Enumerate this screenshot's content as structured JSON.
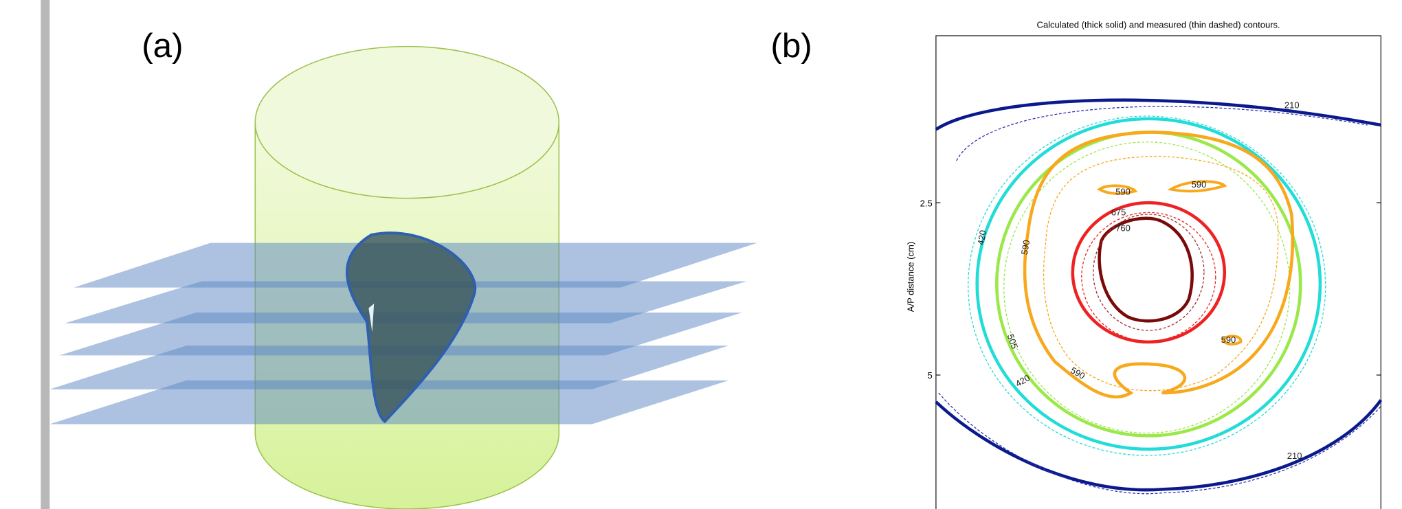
{
  "panel_a": {
    "label": "(a)"
  },
  "panel_b": {
    "label": "(b)",
    "title": "Calculated (thick solid) and measured (thin dashed) contours.",
    "y_label": "A/P distance (cm)",
    "yticks": [
      "2.5",
      "5"
    ],
    "contour_labels": [
      "210",
      "210",
      "420",
      "420",
      "505",
      "590",
      "590",
      "590",
      "590",
      "590",
      "675",
      "760"
    ]
  }
}
